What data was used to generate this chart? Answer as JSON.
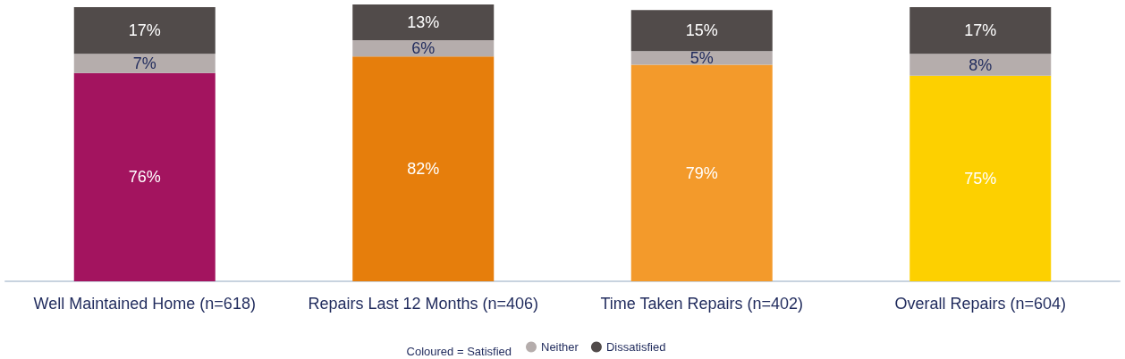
{
  "chart_data": {
    "type": "bar",
    "stacked": true,
    "categories": [
      "Well Maintained Home (n=618)",
      "Repairs Last 12 Months (n=406)",
      "Time Taken Repairs (n=402)",
      "Overall Repairs (n=604)"
    ],
    "series": [
      {
        "colors": [
          "#a3145f",
          "#e67e0c",
          "#f39a2b",
          "#fdd000"
        ],
        "values": [
          76,
          82,
          79,
          75
        ],
        "value_labels": [
          "76%",
          "82%",
          "79%",
          "75%"
        ]
      },
      {
        "name": "Neither",
        "color": "#b5adac",
        "values": [
          7,
          6,
          5,
          8
        ],
        "value_labels": [
          "7%",
          "6%",
          "5%",
          "8%"
        ]
      },
      {
        "name": "Dissatisfied",
        "color": "#514b4a",
        "values": [
          17,
          13,
          15,
          17
        ],
        "value_labels": [
          "17%",
          "13%",
          "15%",
          "17%"
        ]
      }
    ],
    "legend": "bottom",
    "legend_title": "Coloured = Satisfied",
    "grid": false
  }
}
